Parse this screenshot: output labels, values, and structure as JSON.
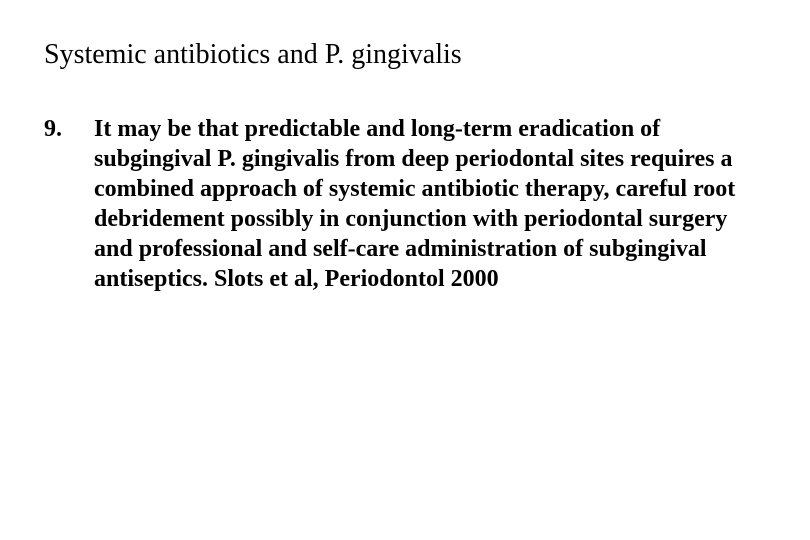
{
  "slide": {
    "title": "Systemic antibiotics and P. gingivalis",
    "title_fontsize": 28,
    "title_weight": "normal",
    "list_number": "9.",
    "body_text": "It may be that predictable and long-term eradication of subgingival P. gingivalis from deep periodontal sites requires a combined approach of systemic antibiotic therapy, careful root debridement possibly in conjunction with periodontal surgery and professional and self-care administration of subgingival antiseptics. Slots et al, Periodontol 2000",
    "body_fontsize": 24,
    "body_weight": "bold",
    "background_color": "#ffffff",
    "text_color": "#000000",
    "font_family": "Times New Roman"
  }
}
